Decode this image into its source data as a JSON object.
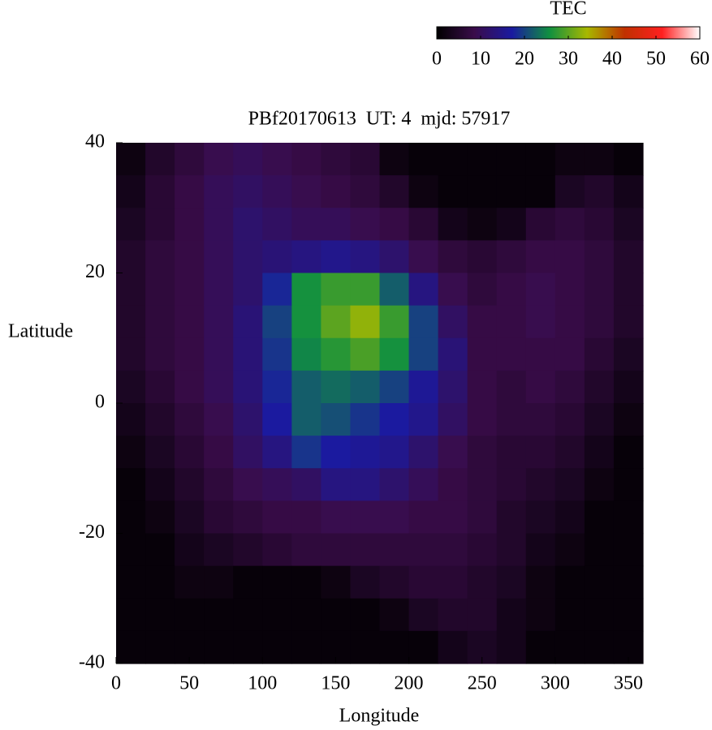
{
  "chart_data": {
    "type": "heatmap",
    "title": "PBf20170613  UT: 4  mjd: 57917",
    "xlabel": "Longitude",
    "ylabel": "Latitude",
    "x": [
      10,
      30,
      50,
      70,
      90,
      110,
      130,
      150,
      170,
      190,
      210,
      230,
      250,
      270,
      290,
      310,
      330,
      350
    ],
    "y": [
      37.5,
      32.5,
      27.5,
      22.5,
      17.5,
      12.5,
      7.5,
      2.5,
      -2.5,
      -7.5,
      -12.5,
      -17.5,
      -22.5,
      -27.5,
      -32.5,
      -37.5
    ],
    "z": [
      [
        2,
        5,
        7,
        9,
        10,
        9,
        8,
        7,
        6,
        2,
        1,
        1,
        1,
        1,
        1,
        2,
        2,
        1
      ],
      [
        3,
        6,
        8,
        10,
        11,
        10,
        9,
        8,
        7,
        5,
        2,
        1,
        1,
        1,
        1,
        4,
        5,
        3
      ],
      [
        4,
        6,
        8,
        10,
        12,
        11,
        10,
        10,
        9,
        8,
        6,
        3,
        2,
        3,
        6,
        7,
        6,
        4
      ],
      [
        5,
        7,
        8,
        10,
        12,
        13,
        14,
        15,
        14,
        12,
        9,
        7,
        6,
        7,
        8,
        8,
        7,
        5
      ],
      [
        5,
        7,
        8,
        10,
        12,
        18,
        26,
        28,
        28,
        22,
        14,
        9,
        7,
        8,
        9,
        8,
        7,
        5
      ],
      [
        5,
        7,
        8,
        10,
        13,
        20,
        26,
        30,
        33,
        28,
        20,
        11,
        8,
        8,
        9,
        8,
        7,
        5
      ],
      [
        5,
        7,
        8,
        10,
        13,
        19,
        25,
        27,
        29,
        26,
        20,
        13,
        8,
        8,
        8,
        8,
        6,
        4
      ],
      [
        4,
        6,
        8,
        10,
        13,
        18,
        22,
        23,
        22,
        20,
        16,
        12,
        8,
        7,
        8,
        7,
        5,
        3
      ],
      [
        3,
        5,
        7,
        9,
        12,
        17,
        22,
        21,
        19,
        17,
        15,
        11,
        8,
        7,
        7,
        6,
        4,
        2
      ],
      [
        2,
        4,
        6,
        8,
        11,
        14,
        19,
        17,
        16,
        15,
        12,
        9,
        7,
        6,
        6,
        5,
        3,
        1
      ],
      [
        1,
        3,
        5,
        7,
        9,
        10,
        11,
        14,
        14,
        12,
        10,
        8,
        7,
        6,
        5,
        4,
        2,
        1
      ],
      [
        1,
        2,
        4,
        6,
        7,
        8,
        8,
        9,
        9,
        9,
        8,
        8,
        7,
        5,
        4,
        3,
        1,
        1
      ],
      [
        1,
        1,
        3,
        4,
        5,
        6,
        7,
        7,
        7,
        7,
        7,
        7,
        6,
        5,
        3,
        2,
        1,
        1
      ],
      [
        1,
        1,
        2,
        2,
        1,
        1,
        1,
        2,
        4,
        5,
        6,
        6,
        5,
        4,
        2,
        1,
        1,
        1
      ],
      [
        1,
        1,
        1,
        1,
        1,
        1,
        1,
        1,
        1,
        2,
        4,
        5,
        5,
        3,
        2,
        1,
        1,
        1
      ],
      [
        1,
        1,
        1,
        1,
        1,
        1,
        1,
        1,
        1,
        1,
        1,
        3,
        4,
        3,
        1,
        1,
        1,
        1
      ]
    ],
    "xlim": [
      0,
      360
    ],
    "xticks": [
      0,
      50,
      100,
      150,
      200,
      250,
      300,
      350
    ],
    "ylim": [
      -40,
      40
    ],
    "yticks": [
      -40,
      -20,
      0,
      20,
      40
    ],
    "colorbar_label": "TEC",
    "zlim": [
      0,
      60
    ],
    "zticks": [
      0,
      10,
      20,
      30,
      40,
      50,
      60
    ],
    "colormap": [
      "#000000",
      "#3a0c4a",
      "#1a1aa0",
      "#109040",
      "#a8b800",
      "#c03000",
      "#ff2020",
      "#ffffff"
    ]
  }
}
